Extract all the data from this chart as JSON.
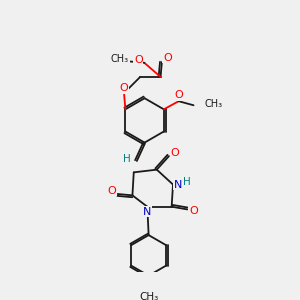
{
  "bg_color": "#f0f0f0",
  "bond_color": "#1a1a1a",
  "o_color": "#ff0000",
  "n_color": "#0000cc",
  "h_color": "#008080",
  "lw": 1.3,
  "xlim": [
    0,
    10
  ],
  "ylim": [
    0,
    10
  ]
}
